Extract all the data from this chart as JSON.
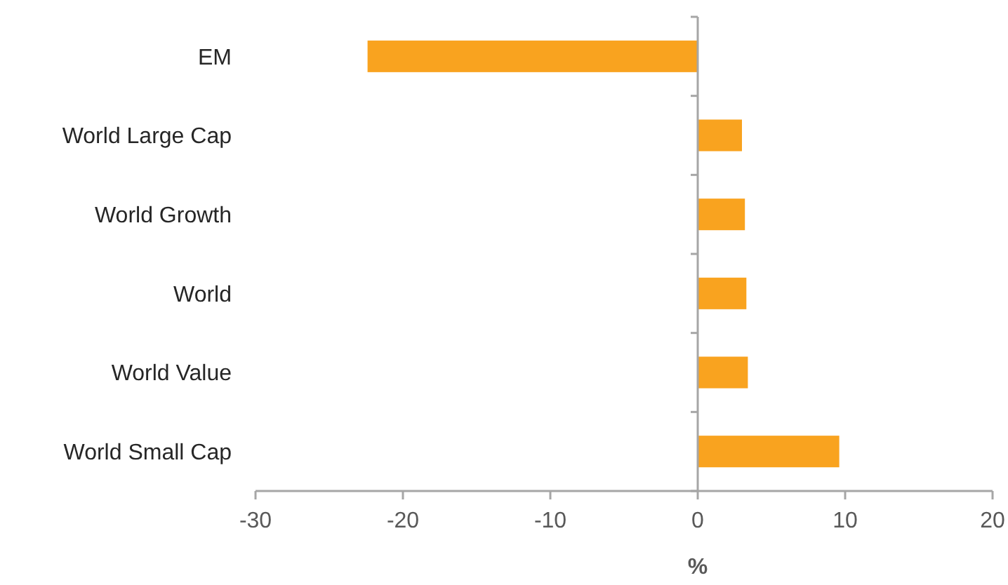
{
  "chart_data": {
    "type": "bar",
    "orientation": "horizontal",
    "xlabel": "%",
    "categories": [
      "EM",
      "World Large Cap",
      "World Growth",
      "World",
      "World Value",
      "World Small Cap"
    ],
    "values": [
      -22.4,
      3.0,
      3.2,
      3.3,
      3.4,
      9.6
    ],
    "color": "#f9a31f",
    "xlim": [
      -30,
      20
    ],
    "xticks": [
      -30,
      -20,
      -10,
      0,
      10,
      20
    ]
  }
}
